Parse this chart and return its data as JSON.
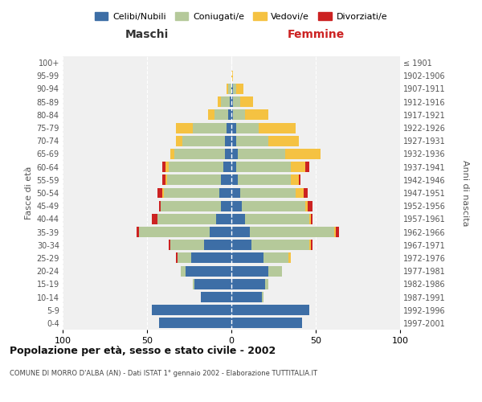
{
  "age_groups": [
    "0-4",
    "5-9",
    "10-14",
    "15-19",
    "20-24",
    "25-29",
    "30-34",
    "35-39",
    "40-44",
    "45-49",
    "50-54",
    "55-59",
    "60-64",
    "65-69",
    "70-74",
    "75-79",
    "80-84",
    "85-89",
    "90-94",
    "95-99",
    "100+"
  ],
  "birth_years": [
    "1997-2001",
    "1992-1996",
    "1987-1991",
    "1982-1986",
    "1977-1981",
    "1972-1976",
    "1967-1971",
    "1962-1966",
    "1957-1961",
    "1952-1956",
    "1947-1951",
    "1942-1946",
    "1937-1941",
    "1932-1936",
    "1927-1931",
    "1922-1926",
    "1917-1921",
    "1912-1916",
    "1907-1911",
    "1902-1906",
    "≤ 1901"
  ],
  "male": {
    "celibi": [
      43,
      47,
      18,
      22,
      27,
      24,
      16,
      13,
      9,
      6,
      7,
      6,
      5,
      4,
      4,
      3,
      2,
      1,
      0,
      0,
      0
    ],
    "coniugati": [
      0,
      0,
      0,
      1,
      3,
      8,
      20,
      42,
      35,
      36,
      33,
      32,
      32,
      30,
      25,
      20,
      8,
      5,
      2,
      0,
      0
    ],
    "vedovi": [
      0,
      0,
      0,
      0,
      0,
      0,
      0,
      0,
      0,
      0,
      1,
      1,
      2,
      2,
      4,
      10,
      4,
      2,
      1,
      0,
      0
    ],
    "divorziati": [
      0,
      0,
      0,
      0,
      0,
      1,
      1,
      1,
      3,
      1,
      3,
      2,
      2,
      0,
      0,
      0,
      0,
      0,
      0,
      0,
      0
    ]
  },
  "female": {
    "nubili": [
      42,
      46,
      18,
      20,
      22,
      19,
      12,
      11,
      8,
      6,
      5,
      4,
      3,
      4,
      3,
      3,
      1,
      1,
      1,
      0,
      0
    ],
    "coniugate": [
      0,
      0,
      1,
      2,
      8,
      15,
      34,
      50,
      38,
      38,
      33,
      31,
      32,
      28,
      19,
      13,
      7,
      4,
      2,
      0,
      0
    ],
    "vedove": [
      0,
      0,
      0,
      0,
      0,
      1,
      1,
      1,
      1,
      1,
      5,
      5,
      9,
      21,
      18,
      22,
      14,
      8,
      4,
      1,
      0
    ],
    "divorziate": [
      0,
      0,
      0,
      0,
      0,
      0,
      1,
      2,
      1,
      3,
      2,
      1,
      2,
      0,
      0,
      0,
      0,
      0,
      0,
      0,
      0
    ]
  },
  "colors": {
    "celibi": "#3d6ea6",
    "coniugati": "#b5c99a",
    "vedovi": "#f5c242",
    "divorziati": "#cc2222"
  },
  "xlim": 100,
  "title": "Popolazione per età, sesso e stato civile - 2002",
  "subtitle": "COMUNE DI MORRO D'ALBA (AN) - Dati ISTAT 1° gennaio 2002 - Elaborazione TUTTITALIA.IT",
  "xlabel_left": "Maschi",
  "xlabel_right": "Femmine",
  "ylabel_left": "Fasce di età",
  "ylabel_right": "Anni di nascita",
  "legend_labels": [
    "Celibi/Nubili",
    "Coniugati/e",
    "Vedovi/e",
    "Divorziati/e"
  ],
  "bg_color": "#ffffff",
  "plot_bg": "#f0f0f0",
  "grid_color": "#ffffff"
}
